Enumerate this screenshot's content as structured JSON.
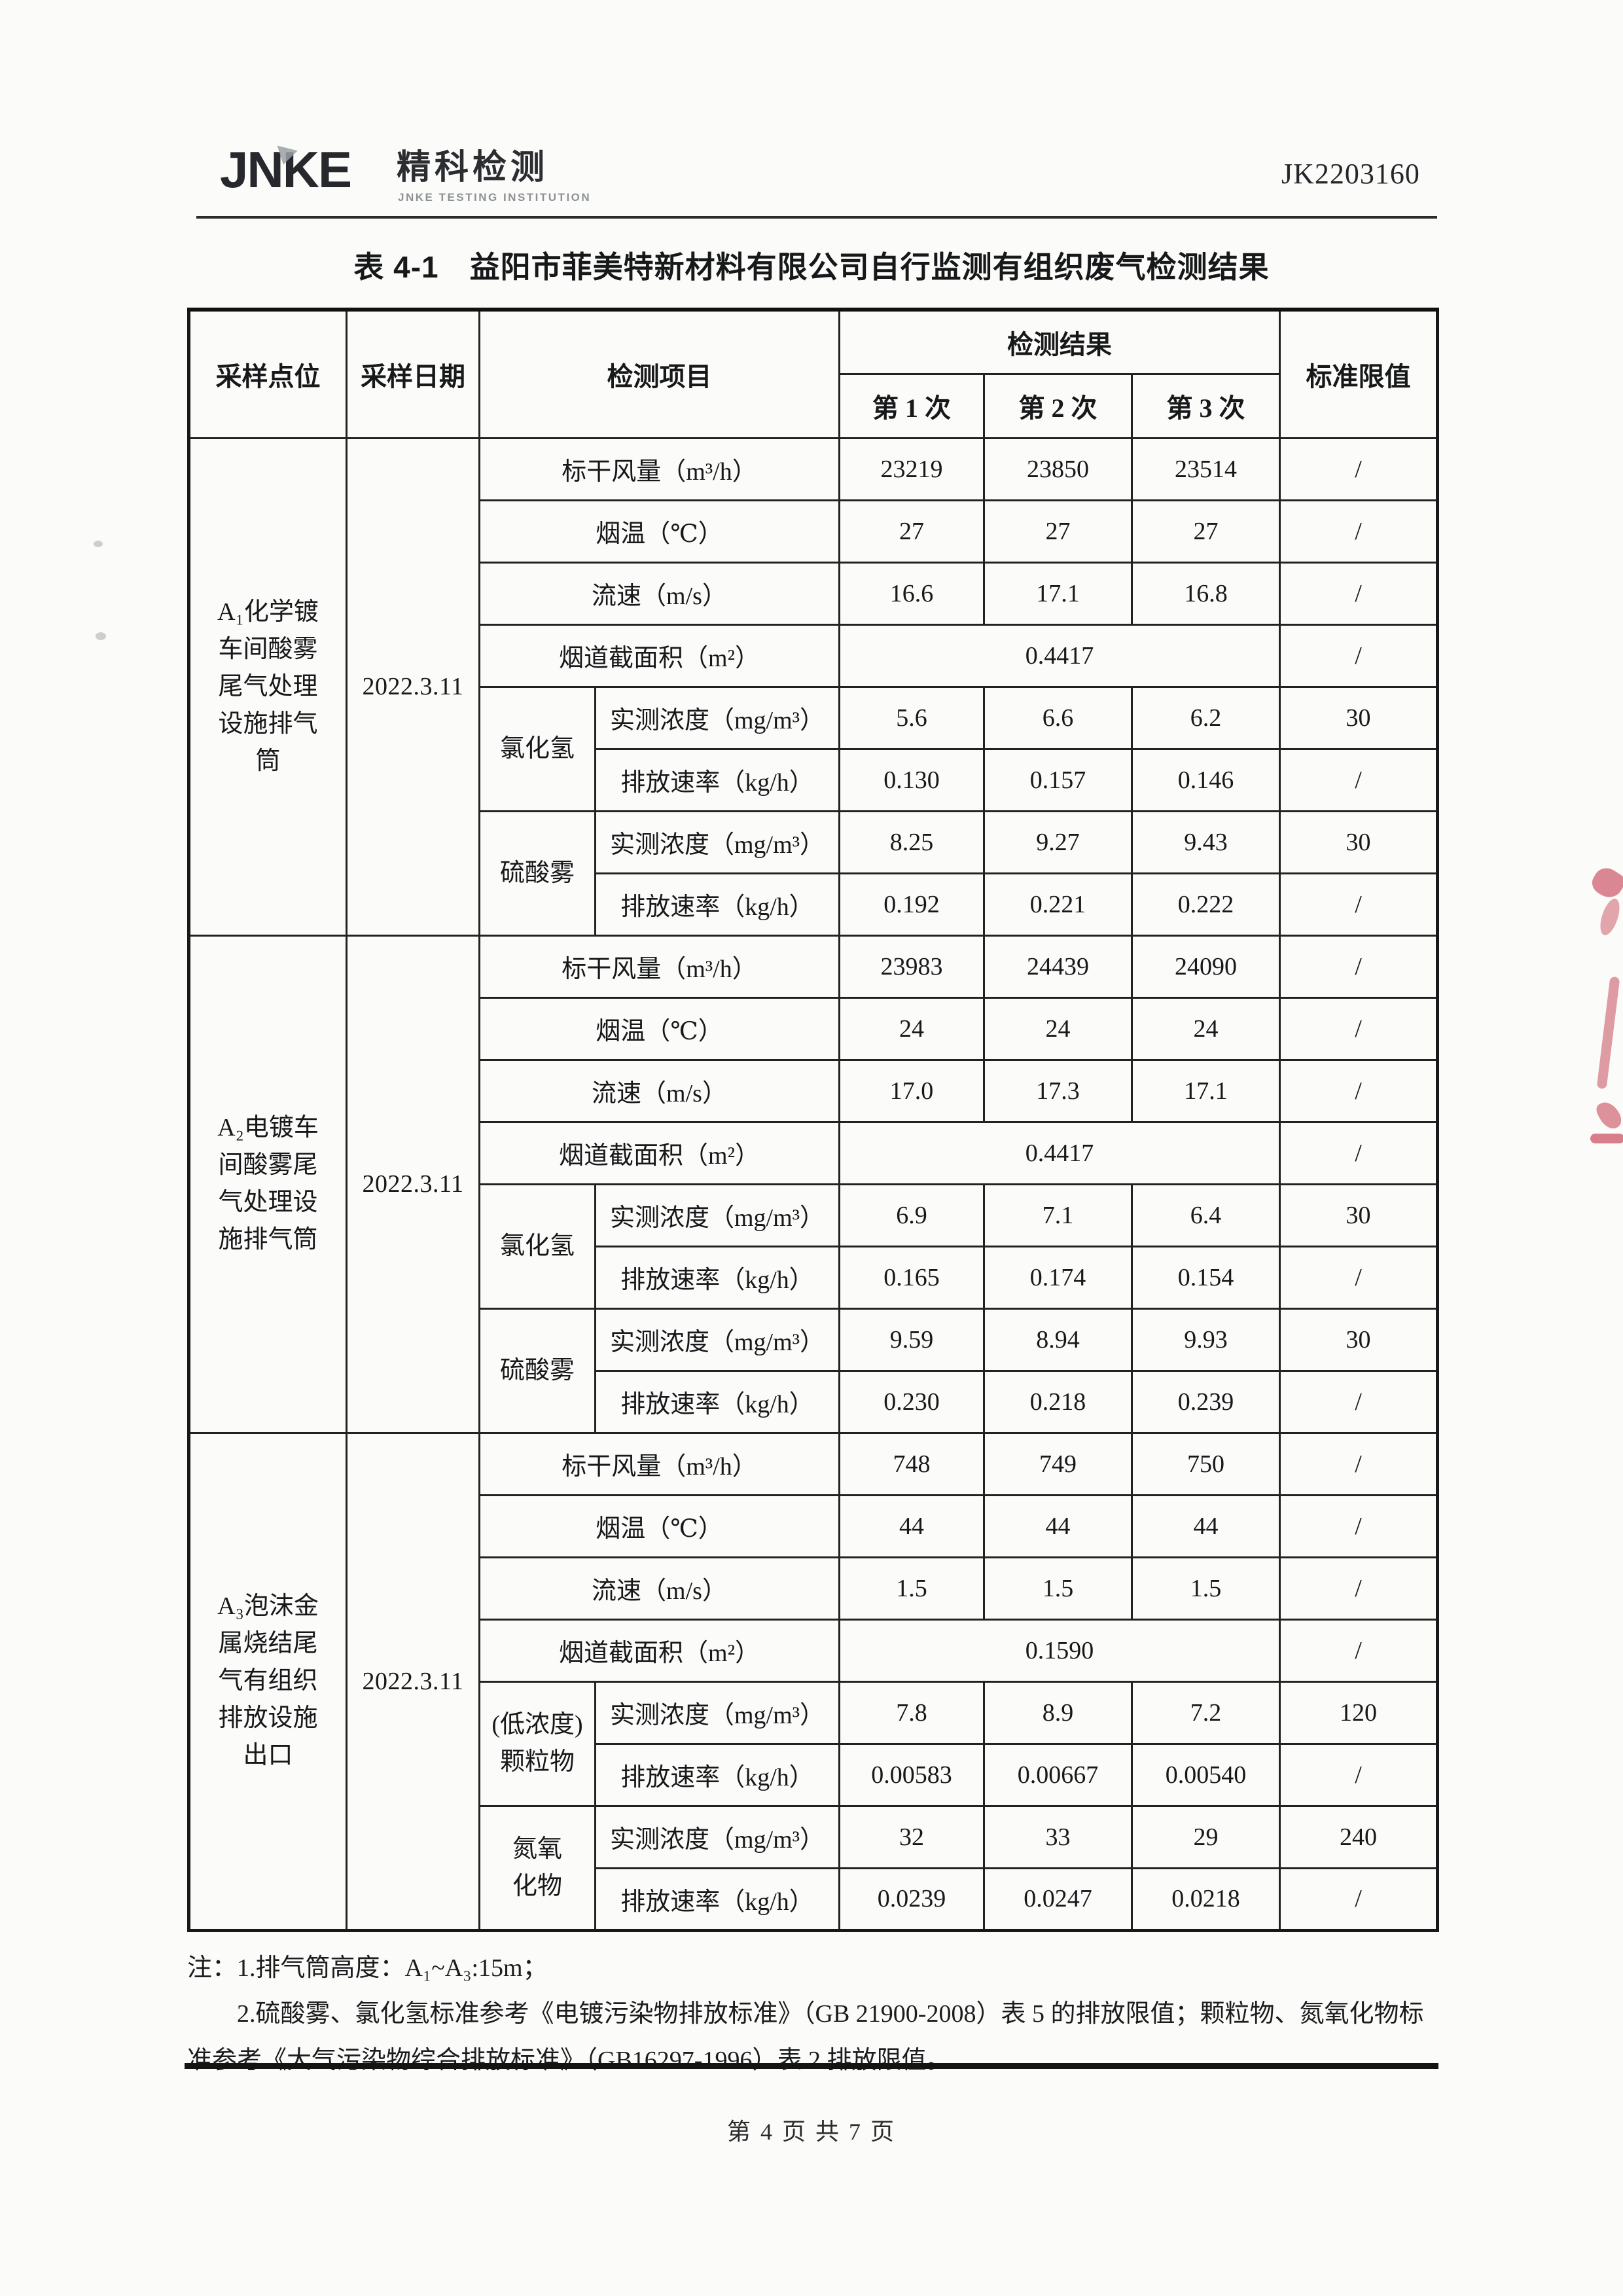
{
  "page": {
    "report_no": "JK2203160",
    "footer": "第 4 页 共 7 页"
  },
  "logo": {
    "jnke": "JNKE",
    "cn": "精科检测",
    "sub": "JNKE TESTING INSTITUTION"
  },
  "title": "表 4-1　益阳市菲美特新材料有限公司自行监测有组织废气检测结果",
  "artifacts": {
    "seal_color": "#c43b4e"
  },
  "table": {
    "header_row1": [
      {
        "t": "采样点位",
        "rs": 2
      },
      {
        "t": "采样日期",
        "rs": 2
      },
      {
        "t": "检测项目",
        "cs": 2,
        "rs": 2
      },
      {
        "t": "检测结果",
        "cs": 3
      },
      {
        "t": "标准限值",
        "rs": 2
      }
    ],
    "header_row2": [
      {
        "t": "第 1 次"
      },
      {
        "t": "第 2 次"
      },
      {
        "t": "第 3 次"
      }
    ],
    "rows": [
      [
        {
          "t": "A₁化学镀\n车间酸雾\n尾气处理\n设施排气\n筒",
          "rs": 8,
          "cls": "point"
        },
        {
          "t": "2022.3.11",
          "rs": 8,
          "cls": "date"
        },
        {
          "t": "标干风量（m³/h）",
          "cs": 2
        },
        {
          "t": "23219"
        },
        {
          "t": "23850"
        },
        {
          "t": "23514"
        },
        {
          "t": "/"
        }
      ],
      [
        {
          "t": "烟温（℃）",
          "cs": 2
        },
        {
          "t": "27"
        },
        {
          "t": "27"
        },
        {
          "t": "27"
        },
        {
          "t": "/"
        }
      ],
      [
        {
          "t": "流速（m/s）",
          "cs": 2
        },
        {
          "t": "16.6"
        },
        {
          "t": "17.1"
        },
        {
          "t": "16.8"
        },
        {
          "t": "/"
        }
      ],
      [
        {
          "t": "烟道截面积（m²）",
          "cs": 2
        },
        {
          "t": "0.4417",
          "cs": 3
        },
        {
          "t": "/"
        }
      ],
      [
        {
          "t": "氯化氢",
          "rs": 2,
          "cls": "group"
        },
        {
          "t": "实测浓度（mg/m³）"
        },
        {
          "t": "5.6"
        },
        {
          "t": "6.6"
        },
        {
          "t": "6.2"
        },
        {
          "t": "30",
          "b": true
        }
      ],
      [
        {
          "t": "排放速率（kg/h）"
        },
        {
          "t": "0.130"
        },
        {
          "t": "0.157"
        },
        {
          "t": "0.146"
        },
        {
          "t": "/"
        }
      ],
      [
        {
          "t": "硫酸雾",
          "rs": 2,
          "cls": "group"
        },
        {
          "t": "实测浓度（mg/m³）"
        },
        {
          "t": "8.25"
        },
        {
          "t": "9.27"
        },
        {
          "t": "9.43"
        },
        {
          "t": "30",
          "b": true
        }
      ],
      [
        {
          "t": "排放速率（kg/h）"
        },
        {
          "t": "0.192"
        },
        {
          "t": "0.221"
        },
        {
          "t": "0.222"
        },
        {
          "t": "/"
        }
      ],
      [
        {
          "t": "A₂电镀车\n间酸雾尾\n气处理设\n施排气筒",
          "rs": 8,
          "cls": "point"
        },
        {
          "t": "2022.3.11",
          "rs": 8,
          "cls": "date"
        },
        {
          "t": "标干风量（m³/h）",
          "cs": 2
        },
        {
          "t": "23983"
        },
        {
          "t": "24439"
        },
        {
          "t": "24090"
        },
        {
          "t": "/"
        }
      ],
      [
        {
          "t": "烟温（℃）",
          "cs": 2
        },
        {
          "t": "24"
        },
        {
          "t": "24"
        },
        {
          "t": "24"
        },
        {
          "t": "/"
        }
      ],
      [
        {
          "t": "流速（m/s）",
          "cs": 2
        },
        {
          "t": "17.0"
        },
        {
          "t": "17.3"
        },
        {
          "t": "17.1"
        },
        {
          "t": "/"
        }
      ],
      [
        {
          "t": "烟道截面积（m²）",
          "cs": 2
        },
        {
          "t": "0.4417",
          "cs": 3
        },
        {
          "t": "/"
        }
      ],
      [
        {
          "t": "氯化氢",
          "rs": 2,
          "cls": "group"
        },
        {
          "t": "实测浓度（mg/m³）"
        },
        {
          "t": "6.9"
        },
        {
          "t": "7.1"
        },
        {
          "t": "6.4"
        },
        {
          "t": "30",
          "b": true
        }
      ],
      [
        {
          "t": "排放速率（kg/h）"
        },
        {
          "t": "0.165"
        },
        {
          "t": "0.174"
        },
        {
          "t": "0.154"
        },
        {
          "t": "/"
        }
      ],
      [
        {
          "t": "硫酸雾",
          "rs": 2,
          "cls": "group"
        },
        {
          "t": "实测浓度（mg/m³）"
        },
        {
          "t": "9.59"
        },
        {
          "t": "8.94"
        },
        {
          "t": "9.93"
        },
        {
          "t": "30",
          "b": true
        }
      ],
      [
        {
          "t": "排放速率（kg/h）"
        },
        {
          "t": "0.230"
        },
        {
          "t": "0.218"
        },
        {
          "t": "0.239"
        },
        {
          "t": "/"
        }
      ],
      [
        {
          "t": "A₃泡沫金\n属烧结尾\n气有组织\n排放设施\n出口",
          "rs": 8,
          "cls": "point"
        },
        {
          "t": "2022.3.11",
          "rs": 8,
          "cls": "date"
        },
        {
          "t": "标干风量（m³/h）",
          "cs": 2
        },
        {
          "t": "748"
        },
        {
          "t": "749"
        },
        {
          "t": "750"
        },
        {
          "t": "/"
        }
      ],
      [
        {
          "t": "烟温（℃）",
          "cs": 2
        },
        {
          "t": "44"
        },
        {
          "t": "44"
        },
        {
          "t": "44"
        },
        {
          "t": "/"
        }
      ],
      [
        {
          "t": "流速（m/s）",
          "cs": 2
        },
        {
          "t": "1.5"
        },
        {
          "t": "1.5"
        },
        {
          "t": "1.5"
        },
        {
          "t": "/"
        }
      ],
      [
        {
          "t": "烟道截面积（m²）",
          "cs": 2
        },
        {
          "t": "0.1590",
          "cs": 3
        },
        {
          "t": "/"
        }
      ],
      [
        {
          "t": "(低浓度)\n颗粒物",
          "rs": 2,
          "cls": "group"
        },
        {
          "t": "实测浓度（mg/m³）"
        },
        {
          "t": "7.8"
        },
        {
          "t": "8.9"
        },
        {
          "t": "7.2"
        },
        {
          "t": "120",
          "b": true
        }
      ],
      [
        {
          "t": "排放速率（kg/h）"
        },
        {
          "t": "0.00583"
        },
        {
          "t": "0.00667"
        },
        {
          "t": "0.00540"
        },
        {
          "t": "/"
        }
      ],
      [
        {
          "t": "氮氧\n化物",
          "rs": 2,
          "cls": "group"
        },
        {
          "t": "实测浓度（mg/m³）"
        },
        {
          "t": "32"
        },
        {
          "t": "33"
        },
        {
          "t": "29"
        },
        {
          "t": "240",
          "b": true
        }
      ],
      [
        {
          "t": "排放速率（kg/h）"
        },
        {
          "t": "0.0239"
        },
        {
          "t": "0.0247"
        },
        {
          "t": "0.0218"
        },
        {
          "t": "/"
        }
      ]
    ]
  },
  "notes": [
    "注：1.排气筒高度：A₁~A₃:15m；",
    "2.硫酸雾、氯化氢标准参考《电镀污染物排放标准》（GB 21900-2008）表 5 的排放限值；颗粒物、氮氧化物标准参考《大气污染物综合排放标准》（GB16297-1996）表 2 排放限值。"
  ]
}
